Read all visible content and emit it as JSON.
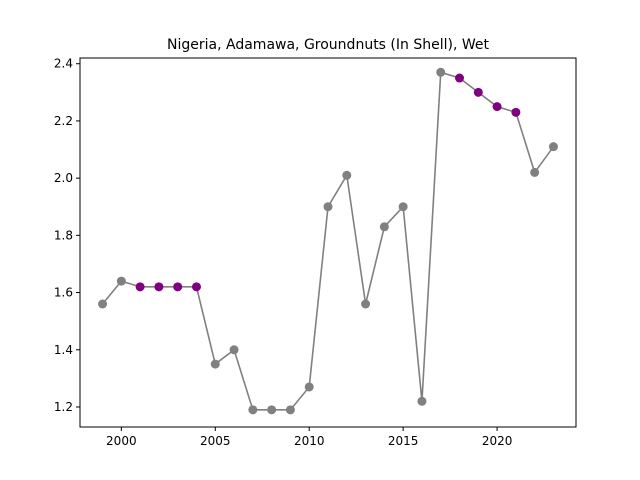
{
  "chart_data": {
    "type": "line",
    "title": "Nigeria, Adamawa, Groundnuts (In Shell), Wet",
    "xlabel": "",
    "ylabel": "",
    "xlim": [
      1997.8,
      2024.2
    ],
    "ylim": [
      1.13,
      2.42
    ],
    "x_ticks": [
      2000,
      2005,
      2010,
      2015,
      2020
    ],
    "y_ticks": [
      1.2,
      1.4,
      1.6,
      1.8,
      2.0,
      2.2,
      2.4
    ],
    "grid": false,
    "line_color": "#808080",
    "highlight_color": "#800080",
    "series": [
      {
        "x": [
          1999,
          2000,
          2001,
          2002,
          2003,
          2004,
          2005,
          2006,
          2007,
          2008,
          2009,
          2010,
          2011,
          2012,
          2013,
          2014,
          2015,
          2016,
          2017,
          2018,
          2019,
          2020,
          2021,
          2022,
          2023
        ],
        "values": [
          1.56,
          1.64,
          1.62,
          1.62,
          1.62,
          1.62,
          1.35,
          1.4,
          1.19,
          1.19,
          1.19,
          1.27,
          1.9,
          2.01,
          1.56,
          1.83,
          1.9,
          1.22,
          2.37,
          2.35,
          2.3,
          2.25,
          2.23,
          2.02,
          2.11
        ],
        "highlighted": [
          false,
          false,
          true,
          true,
          true,
          true,
          false,
          false,
          false,
          false,
          false,
          false,
          false,
          false,
          false,
          false,
          false,
          false,
          false,
          true,
          true,
          true,
          true,
          false,
          false
        ]
      }
    ]
  }
}
